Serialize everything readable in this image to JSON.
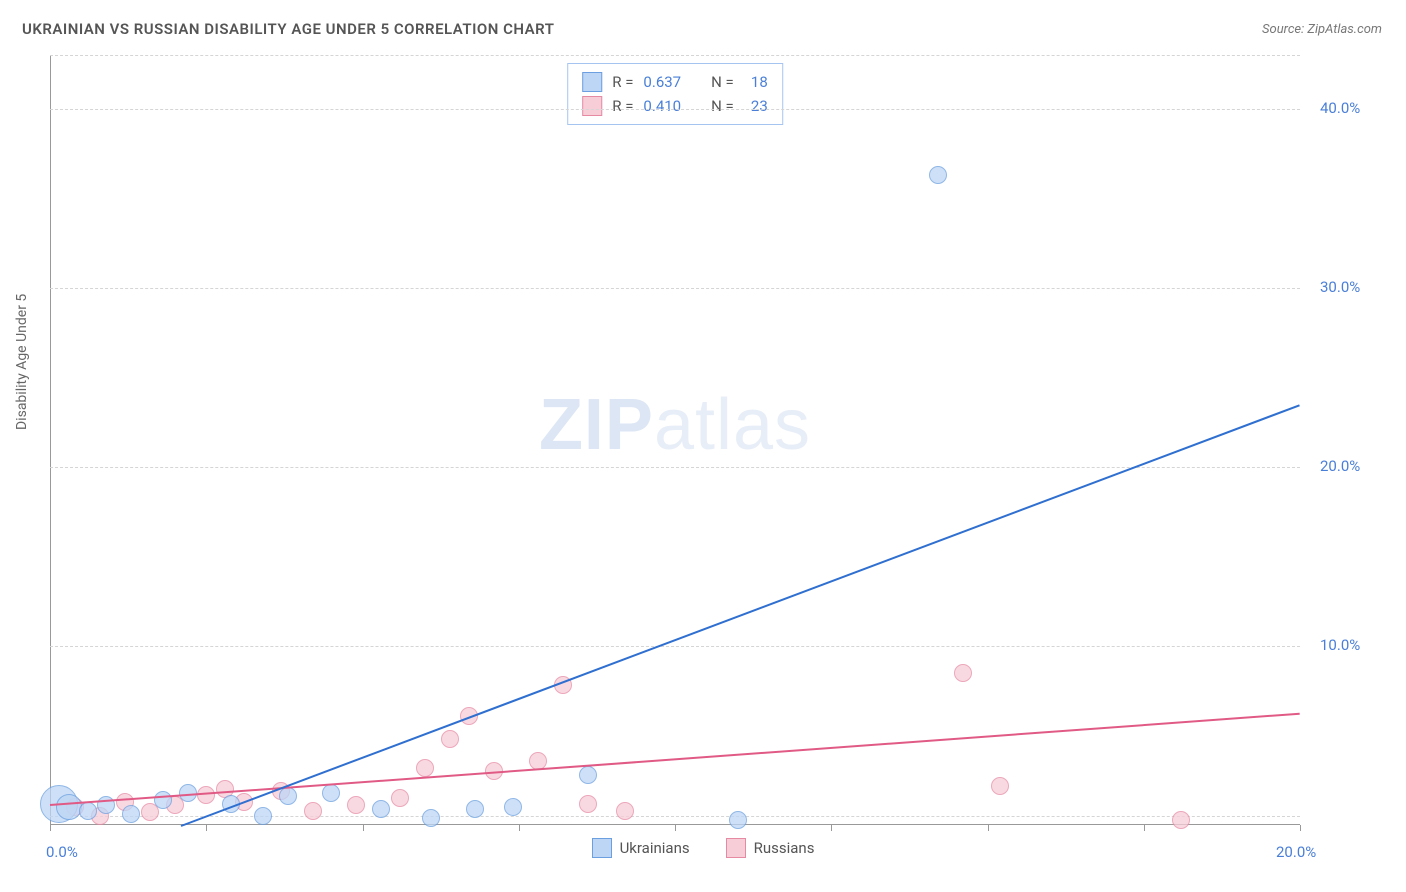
{
  "title": "UKRAINIAN VS RUSSIAN DISABILITY AGE UNDER 5 CORRELATION CHART",
  "source_label": "Source: ZipAtlas.com",
  "watermark": {
    "bold": "ZIP",
    "light": "atlas"
  },
  "y_axis_title": "Disability Age Under 5",
  "chart": {
    "type": "scatter",
    "background_color": "#ffffff",
    "grid_color": "#d5d5d5",
    "axis_color": "#999999",
    "label_color": "#4a7fd8",
    "xlim": [
      0,
      20
    ],
    "ylim": [
      0,
      43
    ],
    "x_ticks": [
      0,
      2.5,
      5,
      7.5,
      10,
      12.5,
      15,
      17.5,
      20
    ],
    "x_tick_labels": {
      "0": "0.0%",
      "20": "20.0%"
    },
    "y_ticks": [
      10,
      20,
      30,
      40
    ],
    "y_tick_labels": {
      "10": "10.0%",
      "20": "20.0%",
      "30": "30.0%",
      "40": "40.0%"
    },
    "y_grid": [
      0.5,
      10,
      20,
      30,
      40,
      43
    ],
    "series": {
      "ukrainians": {
        "label": "Ukrainians",
        "fill": "#bdd6f5",
        "stroke": "#6b9fe0",
        "trend_color": "#2f6fd0",
        "trend_width": 2,
        "marker_radius": 8,
        "marker_opacity": 0.75,
        "trend": {
          "x1": 2.1,
          "y1": -1.0,
          "x2": 20.0,
          "y2": 23.5
        },
        "points": [
          {
            "x": 0.15,
            "y": 1.2,
            "r": 18
          },
          {
            "x": 0.3,
            "y": 1.0,
            "r": 12
          },
          {
            "x": 0.6,
            "y": 0.8
          },
          {
            "x": 0.9,
            "y": 1.1
          },
          {
            "x": 1.3,
            "y": 0.6
          },
          {
            "x": 1.8,
            "y": 1.4
          },
          {
            "x": 2.2,
            "y": 1.8
          },
          {
            "x": 2.9,
            "y": 1.2
          },
          {
            "x": 3.4,
            "y": 0.5
          },
          {
            "x": 3.8,
            "y": 1.6
          },
          {
            "x": 4.5,
            "y": 1.8
          },
          {
            "x": 5.3,
            "y": 0.9
          },
          {
            "x": 6.1,
            "y": 0.4
          },
          {
            "x": 6.8,
            "y": 0.9
          },
          {
            "x": 7.4,
            "y": 1.0
          },
          {
            "x": 8.6,
            "y": 2.8
          },
          {
            "x": 11.0,
            "y": 0.3
          },
          {
            "x": 14.2,
            "y": 36.3
          }
        ]
      },
      "russians": {
        "label": "Russians",
        "fill": "#f7cdd8",
        "stroke": "#e68aa4",
        "trend_color": "#e05a85",
        "trend_width": 2,
        "marker_radius": 8,
        "marker_opacity": 0.75,
        "trend": {
          "x1": 0.0,
          "y1": 1.2,
          "x2": 20.0,
          "y2": 6.3
        },
        "points": [
          {
            "x": 0.4,
            "y": 1.0
          },
          {
            "x": 0.8,
            "y": 0.5
          },
          {
            "x": 1.2,
            "y": 1.3
          },
          {
            "x": 1.6,
            "y": 0.7
          },
          {
            "x": 2.0,
            "y": 1.1
          },
          {
            "x": 2.5,
            "y": 1.7
          },
          {
            "x": 2.8,
            "y": 2.0
          },
          {
            "x": 3.1,
            "y": 1.3
          },
          {
            "x": 3.7,
            "y": 1.9
          },
          {
            "x": 4.2,
            "y": 0.8
          },
          {
            "x": 4.9,
            "y": 1.1
          },
          {
            "x": 5.6,
            "y": 1.5
          },
          {
            "x": 6.0,
            "y": 3.2
          },
          {
            "x": 6.4,
            "y": 4.8
          },
          {
            "x": 6.7,
            "y": 6.1
          },
          {
            "x": 7.1,
            "y": 3.0
          },
          {
            "x": 7.8,
            "y": 3.6
          },
          {
            "x": 8.2,
            "y": 7.8
          },
          {
            "x": 8.6,
            "y": 1.2
          },
          {
            "x": 9.2,
            "y": 0.8
          },
          {
            "x": 14.6,
            "y": 8.5
          },
          {
            "x": 15.2,
            "y": 2.2
          },
          {
            "x": 18.1,
            "y": 0.3
          }
        ]
      }
    }
  },
  "stats_legend": [
    {
      "series": "ukrainians",
      "r_label": "R =",
      "r": "0.637",
      "n_label": "N =",
      "n": "18"
    },
    {
      "series": "russians",
      "r_label": "R =",
      "r": "0.410",
      "n_label": "N =",
      "n": "23"
    }
  ],
  "bottom_legend": [
    {
      "series": "ukrainians"
    },
    {
      "series": "russians"
    }
  ]
}
